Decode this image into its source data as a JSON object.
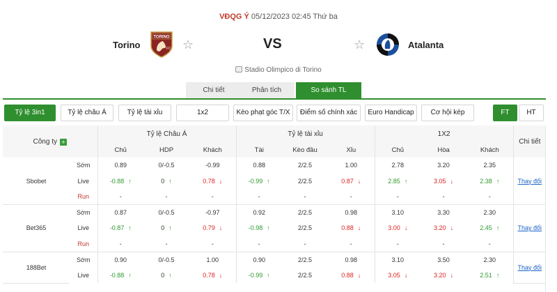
{
  "match": {
    "league": "VĐQG Ý",
    "datetime": "05/12/2023 02:45 Thứ ba",
    "home_team": "Torino",
    "away_team": "Atalanta",
    "vs": "VS",
    "stadium": "Stadio Olimpico di Torino",
    "home_logo_text": "TORINO",
    "home_logo_fc": "FC"
  },
  "tabs": [
    "Chi tiết",
    "Phân tích",
    "So sánh TL"
  ],
  "filters": [
    "Tỷ lệ 3in1",
    "Tỷ lệ châu Á",
    "Tỷ lệ tài xỉu",
    "1x2",
    "Kèo phạt góc T/X",
    "Điểm số chính xác",
    "Euro Handicap",
    "Cơ hội kép"
  ],
  "period_buttons": [
    "FT",
    "HT"
  ],
  "table": {
    "company_header": "Công ty",
    "group_headers": [
      "Tỷ lệ Châu Á",
      "Tỷ lệ tài xỉu",
      "1X2",
      "Chi tiết"
    ],
    "sub_headers": [
      "Chủ",
      "HDP",
      "Khách",
      "Tài",
      "Kèo đầu",
      "Xỉu",
      "Chủ",
      "Hòa",
      "Khách"
    ],
    "detail_link": "Thay đổi",
    "row_kinds": [
      "Sớm",
      "Live",
      "Run"
    ],
    "companies": [
      {
        "name": "Sbobet",
        "rows": [
          [
            "0.89",
            "0/-0.5",
            "-0.99",
            "0.88",
            "2/2.5",
            "1.00",
            "2.78",
            "3.20",
            "2.35"
          ],
          [
            "-0.88",
            "0",
            "0.78",
            "-0.99",
            "2/2.5",
            "0.87",
            "2.85",
            "3.05",
            "2.38"
          ],
          [
            "-",
            "-",
            "-",
            "-",
            "-",
            "-",
            "-",
            "-",
            "-"
          ]
        ],
        "live_dirs": [
          "up",
          "up",
          "down",
          "up",
          "",
          "down",
          "up",
          "down",
          "up"
        ]
      },
      {
        "name": "Bet365",
        "rows": [
          [
            "0.87",
            "0/-0.5",
            "-0.97",
            "0.92",
            "2/2.5",
            "0.98",
            "3.10",
            "3.30",
            "2.30"
          ],
          [
            "-0.87",
            "0",
            "0.79",
            "-0.98",
            "2/2.5",
            "0.88",
            "3.00",
            "3.20",
            "2.45"
          ],
          [
            "-",
            "-",
            "-",
            "-",
            "-",
            "-",
            "-",
            "-",
            "-"
          ]
        ],
        "live_dirs": [
          "up",
          "up",
          "down",
          "up",
          "",
          "down",
          "down",
          "down",
          "up"
        ]
      },
      {
        "name": "188Bet",
        "rows": [
          [
            "0.90",
            "0/-0.5",
            "1.00",
            "0.90",
            "2/2.5",
            "0.98",
            "3.10",
            "3.50",
            "2.30"
          ],
          [
            "-0.88",
            "0",
            "0.78",
            "-0.99",
            "2/2.5",
            "0.88",
            "3.05",
            "3.20",
            "2.51"
          ]
        ],
        "live_dirs": [
          "up",
          "up",
          "down",
          "up",
          "",
          "down",
          "down",
          "down",
          "up"
        ]
      }
    ]
  },
  "colors": {
    "accent": "#2f8f2f",
    "up": "#2e9b2e",
    "down": "#dd2222",
    "league": "#c0392b",
    "link": "#1a63c6"
  }
}
